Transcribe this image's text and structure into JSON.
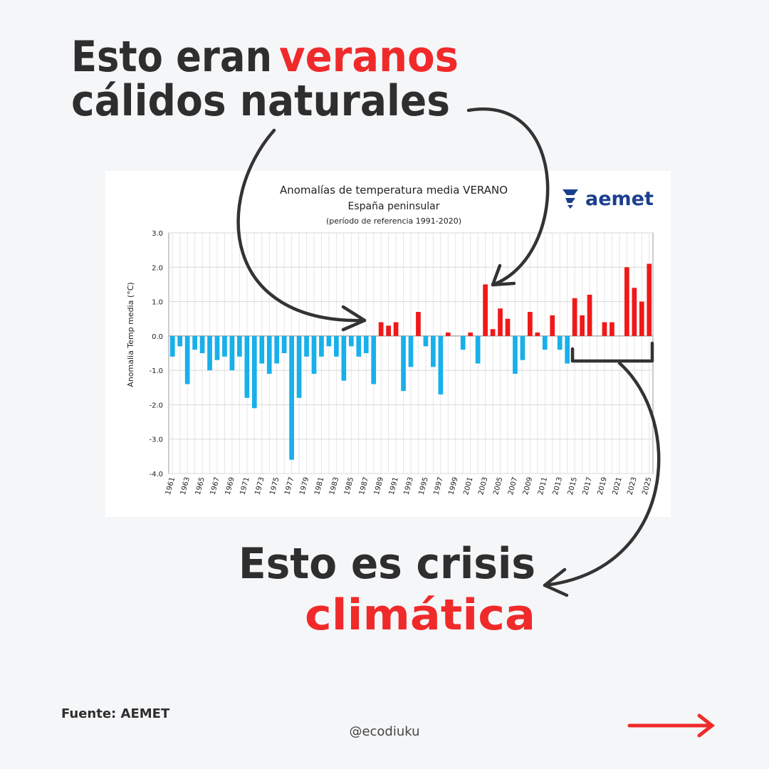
{
  "headline": {
    "line1_dark": "Esto eran",
    "line1_red": "veranos",
    "line2": "cálidos naturales"
  },
  "conclusion": {
    "line1": "Esto es crisis",
    "line2": "climática"
  },
  "source": "Fuente: AEMET",
  "handle": "@ecodiuku",
  "chart_data": {
    "type": "bar",
    "title": "Anomalías de temperatura media VERANO",
    "subtitle": "España peninsular",
    "note": "(período de referencia 1991-2020)",
    "logo": "aemet",
    "ylabel": "Anomalia Temp media (°C)",
    "categories": [
      "1961",
      null,
      "1963",
      null,
      "1965",
      null,
      "1967",
      null,
      "1969",
      null,
      "1971",
      null,
      "1973",
      null,
      "1975",
      null,
      "1977",
      null,
      "1979",
      null,
      "1981",
      null,
      "1983",
      null,
      "1985",
      null,
      "1987",
      null,
      "1989",
      null,
      "1991",
      null,
      "1993",
      null,
      "1995",
      null,
      "1997",
      null,
      "1999",
      null,
      "2001",
      null,
      "2003",
      null,
      "2005",
      null,
      "2007",
      null,
      "2009",
      null,
      "2011",
      null,
      "2013",
      null,
      "2015",
      null,
      "2017",
      null,
      "2019",
      null,
      "2021",
      null,
      "2023",
      null,
      "2025"
    ],
    "values": [
      -0.6,
      -0.3,
      -1.4,
      -0.4,
      -0.5,
      -1.0,
      -0.7,
      -0.6,
      -1.0,
      -0.6,
      -1.8,
      -2.1,
      -0.8,
      -1.1,
      -0.8,
      -0.5,
      -3.6,
      -1.8,
      -0.6,
      -1.1,
      -0.6,
      -0.3,
      -0.6,
      -1.3,
      -0.3,
      -0.6,
      -0.5,
      -1.4,
      0.4,
      0.3,
      0.4,
      -1.6,
      -0.9,
      0.7,
      -0.3,
      -0.9,
      -1.7,
      0.1,
      0.0,
      -0.4,
      0.1,
      -0.8,
      1.5,
      0.2,
      0.8,
      0.5,
      -1.1,
      -0.7,
      0.7,
      0.1,
      -0.4,
      0.6,
      -0.4,
      -0.8,
      1.1,
      0.6,
      1.2,
      0.0,
      0.4,
      0.4,
      0.0,
      2.0,
      1.4,
      1.0,
      2.1
    ],
    "positive_color": "#f01818",
    "negative_color": "#18b0ea",
    "ylim": [
      -4,
      3
    ],
    "yticks": [
      {
        "value": -4,
        "label": "-4.0"
      },
      {
        "value": -3,
        "label": "-3.0"
      },
      {
        "value": -2,
        "label": "-2.0"
      },
      {
        "value": -1,
        "label": "-1.0"
      },
      {
        "value": 0,
        "label": "0.0"
      },
      {
        "value": 1,
        "label": "1.0"
      },
      {
        "value": 2,
        "label": "2.0"
      },
      {
        "value": 3,
        "label": "3.0"
      }
    ],
    "grid": true
  }
}
